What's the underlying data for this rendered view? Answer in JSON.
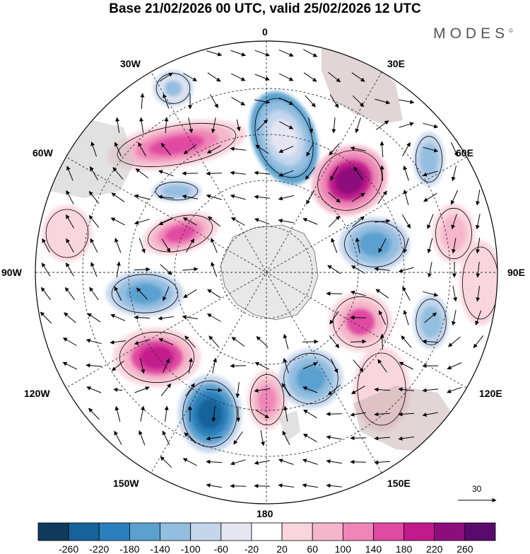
{
  "title": "Base 21/02/2026 00 UTC, valid 25/02/2026 12 UTC",
  "brand": "MODES",
  "brand_mark": "©",
  "longitudes": {
    "lon_0": "0",
    "lon_30e": "30E",
    "lon_60e": "60E",
    "lon_90e": "90E",
    "lon_120e": "120E",
    "lon_150e": "150E",
    "lon_180": "180",
    "lon_150w": "150W",
    "lon_120w": "120W",
    "lon_90w": "90W",
    "lon_60w": "60W",
    "lon_30w": "30W"
  },
  "vector_scale_label": "30",
  "colorbar": {
    "ticks": [
      "-260",
      "-220",
      "-180",
      "-140",
      "-100",
      "-60",
      "-20",
      "20",
      "60",
      "100",
      "140",
      "180",
      "220",
      "260"
    ],
    "colors": [
      "#0e3b5d",
      "#16629a",
      "#2b7fbc",
      "#5aa1cf",
      "#93bee0",
      "#c4d6ec",
      "#e6e6f3",
      "#ffffff",
      "#f9d6de",
      "#f5b6cb",
      "#ef86b7",
      "#e14aa2",
      "#c21a8d",
      "#8e0d7c",
      "#5a0a6c"
    ]
  },
  "colors": {
    "ice": "#e8e8e8",
    "land": "#e3cccc",
    "gridline": "#333333"
  }
}
